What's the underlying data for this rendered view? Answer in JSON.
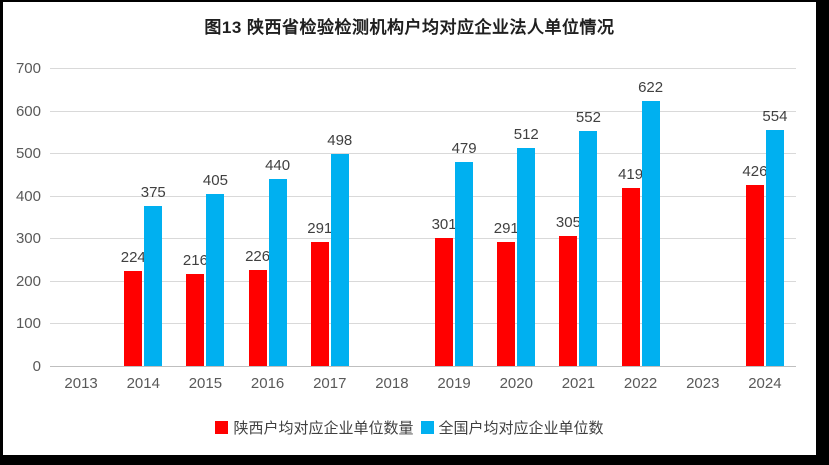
{
  "title": "图13  陕西省检验检测机构户均对应企业法人单位情况",
  "frame": {
    "border_color": "#000000",
    "background": "#ffffff"
  },
  "colors": {
    "series_shaanxi": "#ff0000",
    "series_national": "#00b0f0",
    "gridline": "#d9d9d9",
    "axis_line": "#bfbfbf",
    "tick_label": "#595959",
    "value_label": "#404040"
  },
  "chart_data": {
    "type": "bar",
    "title": "图13  陕西省检验检测机构户均对应企业法人单位情况",
    "categories": [
      "2013",
      "2014",
      "2015",
      "2016",
      "2017",
      "2018",
      "2019",
      "2020",
      "2021",
      "2022",
      "2023",
      "2024"
    ],
    "series": [
      {
        "name": "陕西户均对应企业单位数量",
        "color": "#ff0000",
        "values": [
          null,
          224,
          216,
          226,
          291,
          null,
          301,
          291,
          305,
          419,
          null,
          426
        ]
      },
      {
        "name": "全国户均对应企业单位数",
        "color": "#00b0f0",
        "values": [
          null,
          375,
          405,
          440,
          498,
          null,
          479,
          512,
          552,
          622,
          null,
          554
        ]
      }
    ],
    "xlabel": "",
    "ylabel": "",
    "ylim": [
      0,
      700
    ],
    "yticks": [
      0,
      100,
      200,
      300,
      400,
      500,
      600,
      700
    ],
    "grid": true,
    "data_labels": true,
    "legend_position": "bottom"
  }
}
